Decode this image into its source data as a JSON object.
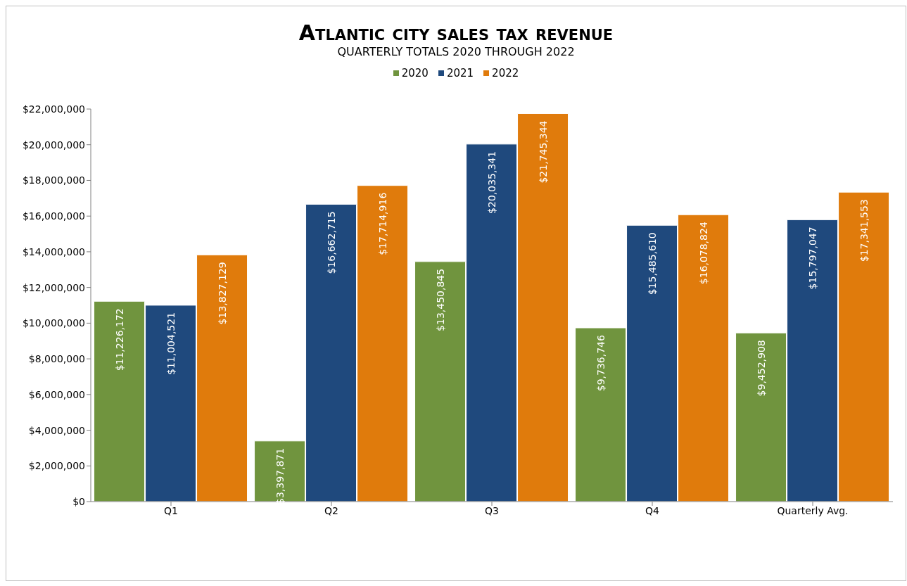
{
  "chart_data": {
    "type": "bar",
    "title": "Atlantic city sales tax revenue",
    "subtitle": "QUARTERLY TOTALS 2020 THROUGH 2022",
    "categories": [
      "Q1",
      "Q2",
      "Q3",
      "Q4",
      "Quarterly Avg."
    ],
    "series": [
      {
        "name": "2020",
        "color": "#70943e",
        "values": [
          11226172,
          3397871,
          13450845,
          9736746,
          9452908
        ],
        "value_labels": [
          "$11,226,172",
          "$3,397,871",
          "$13,450,845",
          "$9,736,746",
          "$9,452,908"
        ]
      },
      {
        "name": "2021",
        "color": "#1f497d",
        "values": [
          11004521,
          16662715,
          20035341,
          15485610,
          15797047
        ],
        "value_labels": [
          "$11,004,521",
          "$16,662,715",
          "$20,035,341",
          "$15,485,610",
          "$15,797,047"
        ]
      },
      {
        "name": "2022",
        "color": "#e07b0c",
        "values": [
          13827129,
          17714916,
          21745344,
          16078824,
          17341553
        ],
        "value_labels": [
          "$13,827,129",
          "$17,714,916",
          "$21,745,344",
          "$16,078,824",
          "$17,341,553"
        ]
      }
    ],
    "ylim": [
      0,
      22000000
    ],
    "yticks": [
      {
        "value": 0,
        "label": "$0"
      },
      {
        "value": 2000000,
        "label": "$2,000,000"
      },
      {
        "value": 4000000,
        "label": "$4,000,000"
      },
      {
        "value": 6000000,
        "label": "$6,000,000"
      },
      {
        "value": 8000000,
        "label": "$8,000,000"
      },
      {
        "value": 10000000,
        "label": "$10,000,000"
      },
      {
        "value": 12000000,
        "label": "$12,000,000"
      },
      {
        "value": 14000000,
        "label": "$14,000,000"
      },
      {
        "value": 16000000,
        "label": "$16,000,000"
      },
      {
        "value": 18000000,
        "label": "$18,000,000"
      },
      {
        "value": 20000000,
        "label": "$20,000,000"
      },
      {
        "value": 22000000,
        "label": "$22,000,000"
      }
    ],
    "grid": false,
    "legend": "top"
  }
}
